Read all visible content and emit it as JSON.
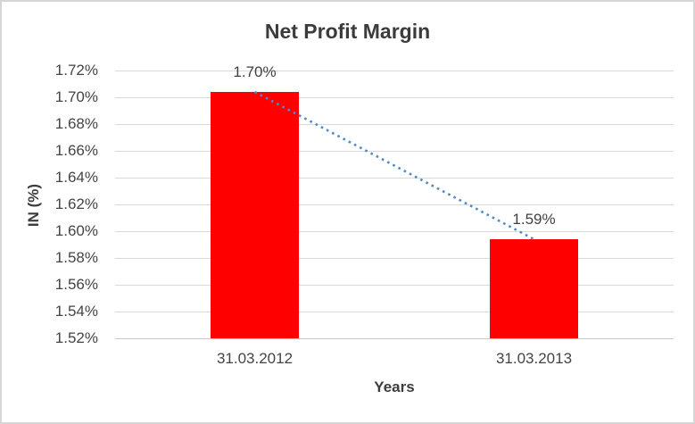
{
  "chart_data": {
    "type": "bar",
    "title": "Net Profit Margin",
    "xlabel": "Years",
    "ylabel": "IN (%)",
    "categories": [
      "31.03.2012",
      "31.03.2013"
    ],
    "series": [
      {
        "name": "Net Profit Margin",
        "values": [
          1.704,
          1.594
        ],
        "data_labels": [
          "1.70%",
          "1.59%"
        ]
      }
    ],
    "ylim": [
      1.52,
      1.72
    ],
    "y_tick_step": 0.02,
    "y_tick_labels": [
      "1.72%",
      "1.70%",
      "1.68%",
      "1.66%",
      "1.64%",
      "1.62%",
      "1.60%",
      "1.58%",
      "1.56%",
      "1.54%",
      "1.52%"
    ],
    "grid": true,
    "legend": "none",
    "trendline": {
      "style": "dotted",
      "connects": "bar tops (linear)",
      "color": "#4e8ac8"
    },
    "colors": {
      "bar": "#ff0000",
      "gridline": "#d9d9d9",
      "axis_line": "#c6c6c6",
      "tick_text": "#444444",
      "title_text": "#3b3b3b",
      "frame_border": "#d6d6d6",
      "background": "#ffffff"
    }
  }
}
